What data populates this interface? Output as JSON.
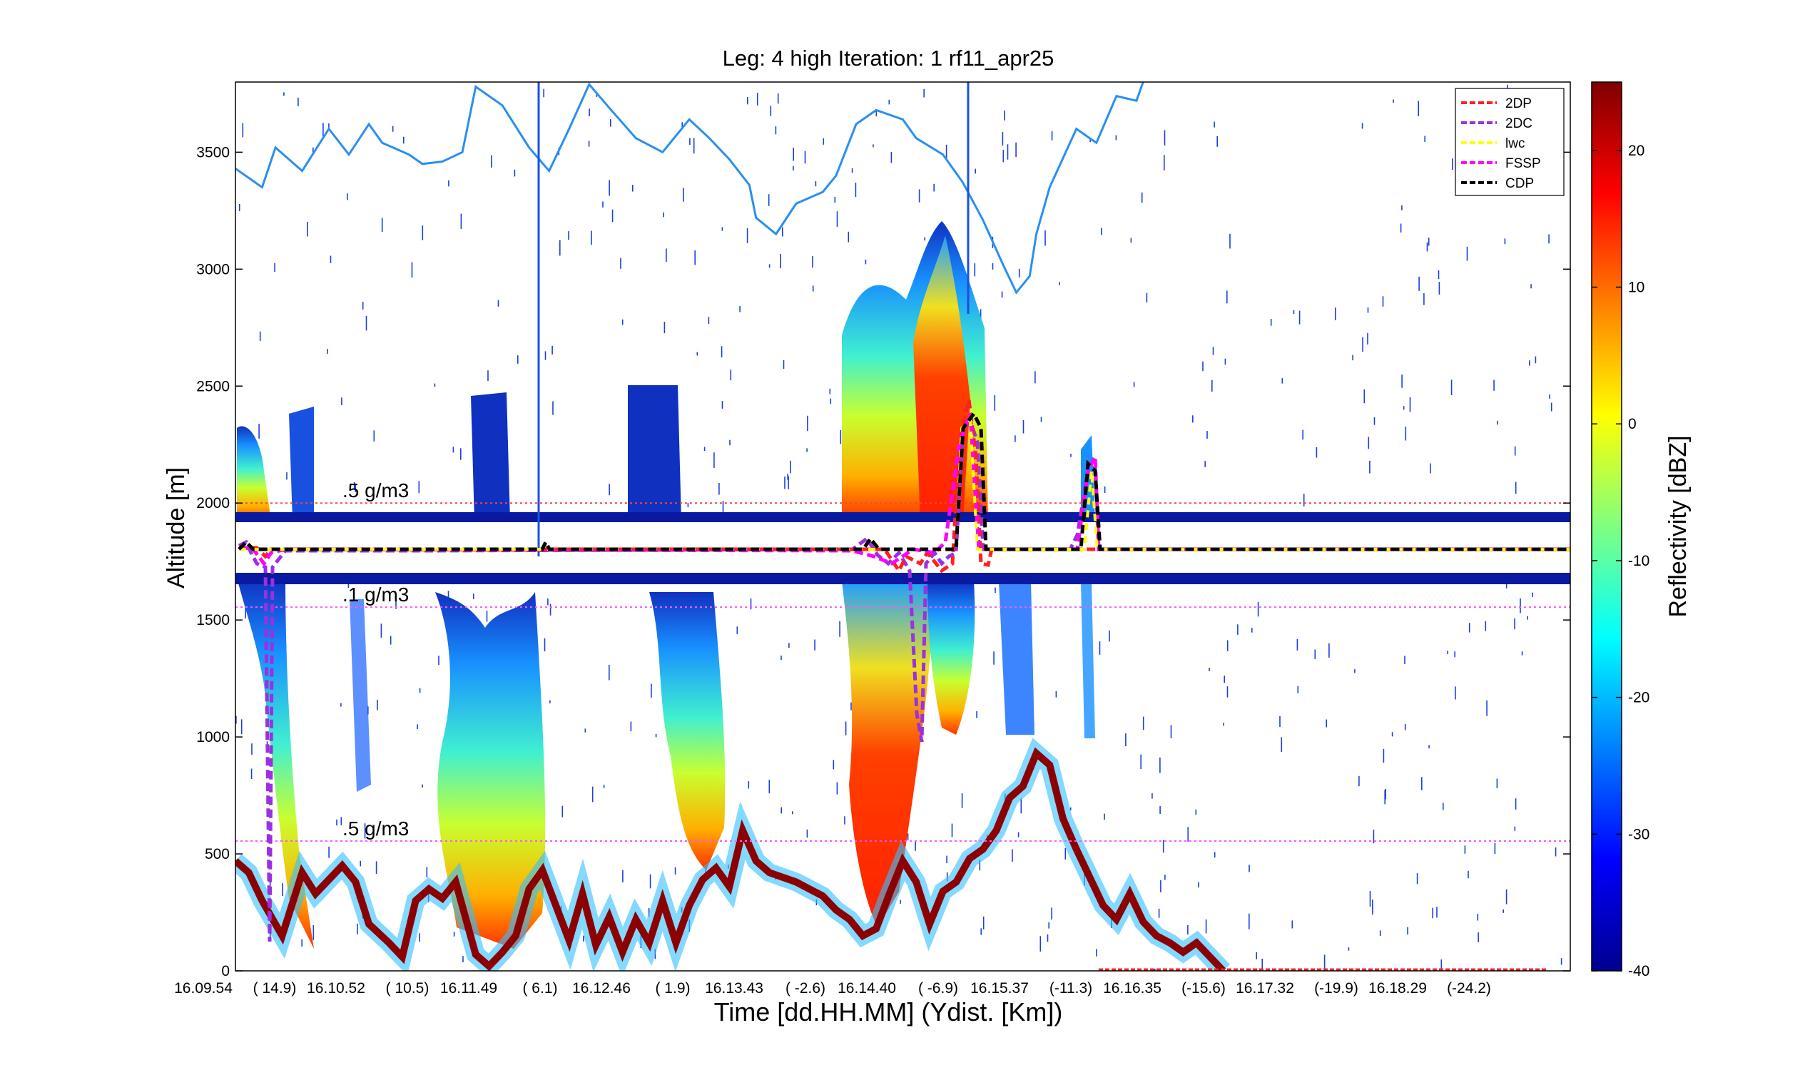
{
  "chart_data": {
    "type": "heatmap",
    "title": "Leg: 4 high Iteration: 1  rf11_apr25",
    "xlabel": "Time [dd.HH.MM]     (Ydist. [Km])",
    "ylabel": "Altitude [m]",
    "ylim": [
      0,
      3800
    ],
    "y_ticks": [
      0,
      500,
      1000,
      1500,
      2000,
      2500,
      3000,
      3500
    ],
    "x_ticks": [
      {
        "time": "16.09.54",
        "dist": "( 14.9)"
      },
      {
        "time": "16.10.52",
        "dist": "( 10.5)"
      },
      {
        "time": "16.11.49",
        "dist": "(  6.1)"
      },
      {
        "time": "16.12.46",
        "dist": "(  1.9)"
      },
      {
        "time": "16.13.43",
        "dist": "( -2.6)"
      },
      {
        "time": "16.14.40",
        "dist": "( -6.9)"
      },
      {
        "time": "16.15.37",
        "dist": "(-11.3)"
      },
      {
        "time": "16.16.35",
        "dist": "(-15.6)"
      },
      {
        "time": "16.17.32",
        "dist": "(-19.9)"
      },
      {
        "time": "16.18.29",
        "dist": "(-24.2)"
      }
    ],
    "colorbar": {
      "label": "Reflectivity [dBZ]",
      "range": [
        -40,
        25
      ],
      "ticks": [
        -40,
        -30,
        -20,
        -10,
        0,
        10,
        20
      ]
    },
    "legend_position": "top-right",
    "series": [
      {
        "name": "2DP",
        "color": "#ff2020"
      },
      {
        "name": "2DC",
        "color": "#9b30e0"
      },
      {
        "name": "lwc",
        "color": "#ffff00"
      },
      {
        "name": "FSSP",
        "color": "#ff00ff"
      },
      {
        "name": "CDP",
        "color": "#000000"
      }
    ],
    "annotations": [
      {
        "text": ".5 g/m3",
        "y": 2000,
        "line_color": "#ff4040"
      },
      {
        "text": ".1 g/m3",
        "y": 1555,
        "line_color": "#ff55ff"
      },
      {
        "text": ".5 g/m3",
        "y": 555,
        "line_color": "#ff55ff"
      }
    ],
    "flight_level_m": 1800,
    "radar_blank_band_m": [
      1700,
      1910
    ],
    "cloud_top_line": {
      "color": "#2a8ff0",
      "points": [
        [
          0,
          3430
        ],
        [
          0.02,
          3350
        ],
        [
          0.03,
          3520
        ],
        [
          0.05,
          3420
        ],
        [
          0.07,
          3600
        ],
        [
          0.085,
          3490
        ],
        [
          0.1,
          3620
        ],
        [
          0.11,
          3540
        ],
        [
          0.13,
          3490
        ],
        [
          0.14,
          3450
        ],
        [
          0.155,
          3460
        ],
        [
          0.17,
          3500
        ],
        [
          0.18,
          3780
        ],
        [
          0.2,
          3700
        ],
        [
          0.22,
          3520
        ],
        [
          0.235,
          3420
        ],
        [
          0.25,
          3600
        ],
        [
          0.265,
          3790
        ],
        [
          0.28,
          3690
        ],
        [
          0.3,
          3560
        ],
        [
          0.32,
          3500
        ],
        [
          0.34,
          3640
        ],
        [
          0.355,
          3560
        ],
        [
          0.37,
          3470
        ],
        [
          0.385,
          3360
        ],
        [
          0.39,
          3220
        ],
        [
          0.405,
          3150
        ],
        [
          0.42,
          3280
        ],
        [
          0.44,
          3330
        ],
        [
          0.45,
          3400
        ],
        [
          0.465,
          3620
        ],
        [
          0.48,
          3680
        ],
        [
          0.5,
          3640
        ],
        [
          0.51,
          3560
        ],
        [
          0.53,
          3490
        ],
        [
          0.545,
          3370
        ],
        [
          0.56,
          3210
        ],
        [
          0.575,
          3020
        ],
        [
          0.585,
          2900
        ],
        [
          0.595,
          2970
        ],
        [
          0.6,
          3150
        ],
        [
          0.61,
          3350
        ],
        [
          0.63,
          3600
        ],
        [
          0.645,
          3540
        ],
        [
          0.66,
          3740
        ],
        [
          0.675,
          3720
        ],
        [
          0.68,
          3800
        ]
      ]
    },
    "ground_line_m_end": 0
  }
}
